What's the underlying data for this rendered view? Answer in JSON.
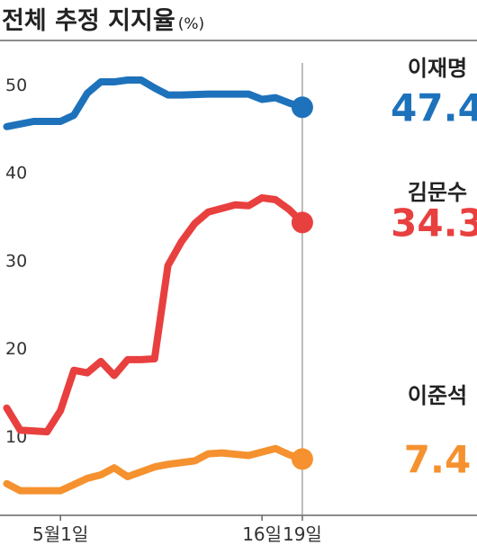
{
  "title": "전체 추정 지지율",
  "unit": "(%)",
  "chart_data": {
    "type": "line",
    "title": "전체 추정 지지율",
    "unit": "(%)",
    "ylim": [
      1,
      55
    ],
    "yticks": [
      10,
      20,
      30,
      40,
      50
    ],
    "x_range": [
      -4.5,
      31
    ],
    "xticks": [
      {
        "x": 0,
        "label": "5월1일"
      },
      {
        "x": 15,
        "label": "16일"
      },
      {
        "x": 18,
        "label": "19일"
      }
    ],
    "grid": false,
    "legend": "end-of-line labels",
    "series": [
      {
        "name": "이재명",
        "final_label": "47.4",
        "color": "#1e72bb",
        "x": [
          -4,
          -2,
          0,
          1,
          2,
          3,
          4,
          5,
          6,
          7,
          8,
          9,
          11,
          12,
          14,
          15,
          16,
          17,
          18
        ],
        "y": [
          45.2,
          45.8,
          45.8,
          46.5,
          49,
          50.3,
          50.3,
          50.5,
          50.5,
          49.6,
          48.8,
          48.8,
          48.9,
          48.9,
          48.9,
          48.3,
          48.5,
          47.9,
          47.4
        ]
      },
      {
        "name": "김문수",
        "final_label": "34.3",
        "color": "#e8403f",
        "x": [
          -4,
          -3,
          -1,
          0,
          1,
          2,
          3,
          4,
          5,
          6,
          7,
          8,
          9,
          10,
          11,
          13,
          14,
          15,
          16,
          17,
          18
        ],
        "y": [
          13.2,
          10.7,
          10.5,
          12.9,
          17.5,
          17.2,
          18.5,
          16.9,
          18.7,
          18.7,
          18.8,
          29.4,
          32.1,
          34.2,
          35.5,
          36.3,
          36.2,
          37.1,
          36.9,
          35.8,
          34.3
        ]
      },
      {
        "name": "이준석",
        "final_label": "7.4",
        "color": "#f5912e",
        "x": [
          -4,
          -3,
          -1,
          0,
          1,
          2,
          3,
          4,
          5,
          7,
          8,
          10,
          11,
          12,
          14,
          15,
          16,
          17,
          18
        ],
        "y": [
          4.6,
          3.8,
          3.8,
          3.8,
          4.5,
          5.2,
          5.6,
          6.4,
          5.4,
          6.5,
          6.8,
          7.2,
          8.0,
          8.1,
          7.8,
          8.2,
          8.6,
          7.9,
          7.4
        ]
      }
    ]
  }
}
